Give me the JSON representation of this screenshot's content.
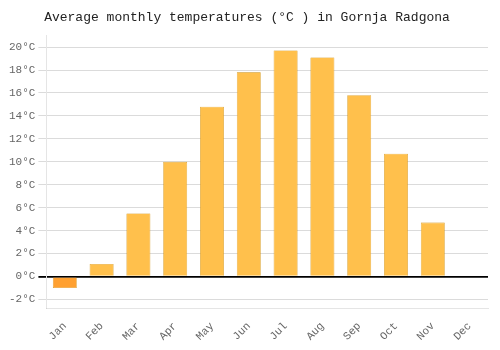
{
  "chart_data": {
    "type": "bar",
    "title": "Average monthly temperatures (°C ) in Gornja Radgona",
    "categories": [
      "Jan",
      "Feb",
      "Mar",
      "Apr",
      "May",
      "Jun",
      "Jul",
      "Aug",
      "Sep",
      "Oct",
      "Nov",
      "Dec"
    ],
    "values": [
      -1.0,
      1.1,
      5.5,
      10.0,
      14.8,
      17.8,
      19.7,
      19.1,
      15.8,
      10.7,
      4.7,
      0.0
    ],
    "colors": [
      "#FFA030",
      "#FFC04C",
      "#FFC04C",
      "#FFC04C",
      "#FFC04C",
      "#FFC04C",
      "#FFC04C",
      "#FFC04C",
      "#FFC04C",
      "#FFC04C",
      "#FFC04C",
      "#FFC04C"
    ],
    "ylim": [
      -2.8,
      21.0
    ],
    "yticks": [
      {
        "value": -2,
        "label": "-2°C"
      },
      {
        "value": 0,
        "label": "0°C"
      },
      {
        "value": 2,
        "label": "2°C"
      },
      {
        "value": 4,
        "label": "4°C"
      },
      {
        "value": 6,
        "label": "6°C"
      },
      {
        "value": 8,
        "label": "8°C"
      },
      {
        "value": 10,
        "label": "10°C"
      },
      {
        "value": 12,
        "label": "12°C"
      },
      {
        "value": 14,
        "label": "14°C"
      },
      {
        "value": 16,
        "label": "16°C"
      },
      {
        "value": 18,
        "label": "18°C"
      },
      {
        "value": 20,
        "label": "20°C"
      }
    ],
    "grid": true
  }
}
